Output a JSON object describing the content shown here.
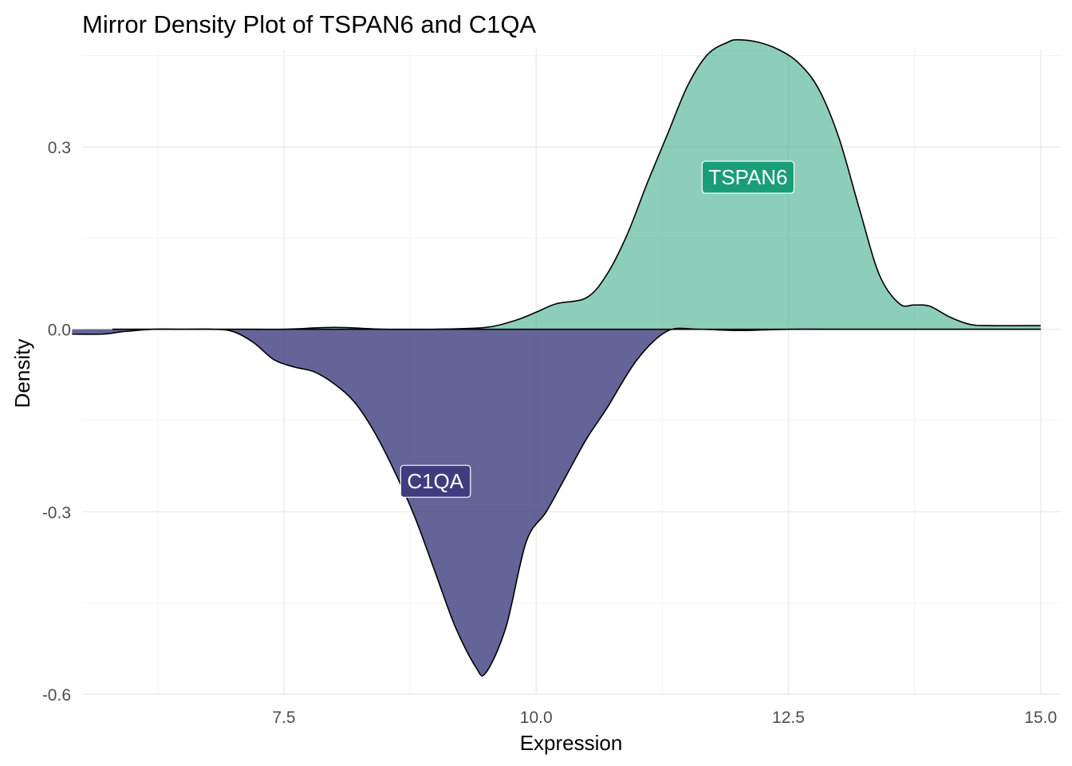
{
  "chart_data": {
    "type": "area",
    "title": "Mirror Density Plot of TSPAN6 and C1QA",
    "xlabel": "Expression",
    "ylabel": "Density",
    "xlim": [
      5.5,
      15.2
    ],
    "ylim": [
      -0.6,
      0.46
    ],
    "x_ticks": [
      7.5,
      10.0,
      12.5,
      15.0
    ],
    "x_tick_labels": [
      "7.5",
      "10.0",
      "12.5",
      "15.0"
    ],
    "y_ticks": [
      -0.6,
      -0.3,
      0.0,
      0.3
    ],
    "y_tick_labels": [
      "-0.6",
      "-0.3",
      "0.0",
      "0.3"
    ],
    "grid": true,
    "legend": "none",
    "series": [
      {
        "name": "TSPAN6",
        "color": "#1b9e77",
        "fill_opacity": 0.5,
        "label_position": [
          12.1,
          0.25
        ],
        "x": [
          5.8,
          6.5,
          7.0,
          7.5,
          8.0,
          8.5,
          9.0,
          9.5,
          9.8,
          10.0,
          10.2,
          10.5,
          10.7,
          10.9,
          11.1,
          11.3,
          11.5,
          11.7,
          11.9,
          12.0,
          12.2,
          12.4,
          12.6,
          12.8,
          13.0,
          13.2,
          13.4,
          13.6,
          13.75,
          13.9,
          14.1,
          14.3,
          14.5,
          15.0
        ],
        "values": [
          0.0,
          0.0,
          0.0,
          0.0,
          0.003,
          0.0,
          0.0,
          0.003,
          0.015,
          0.028,
          0.042,
          0.052,
          0.09,
          0.155,
          0.24,
          0.32,
          0.4,
          0.452,
          0.472,
          0.476,
          0.472,
          0.46,
          0.438,
          0.395,
          0.315,
          0.2,
          0.09,
          0.042,
          0.04,
          0.038,
          0.02,
          0.008,
          0.006,
          0.006
        ]
      },
      {
        "name": "C1QA",
        "color": "#3f3d7f",
        "fill_opacity": 0.8,
        "label_position": [
          9.0,
          -0.25
        ],
        "x": [
          5.4,
          5.7,
          5.9,
          6.2,
          6.5,
          6.8,
          7.0,
          7.2,
          7.4,
          7.6,
          7.8,
          8.0,
          8.2,
          8.4,
          8.6,
          8.8,
          9.0,
          9.2,
          9.4,
          9.5,
          9.7,
          9.9,
          10.1,
          10.3,
          10.5,
          10.7,
          11.0,
          11.3,
          11.6,
          12.0,
          12.5,
          13.0,
          15.0
        ],
        "values": [
          -0.008,
          -0.008,
          -0.004,
          0.0,
          0.0,
          0.0,
          -0.004,
          -0.022,
          -0.05,
          -0.062,
          -0.07,
          -0.09,
          -0.12,
          -0.17,
          -0.235,
          -0.31,
          -0.4,
          -0.49,
          -0.555,
          -0.565,
          -0.49,
          -0.35,
          -0.3,
          -0.24,
          -0.18,
          -0.13,
          -0.05,
          -0.003,
          0.0,
          -0.002,
          0.0,
          0.0,
          0.0
        ]
      }
    ]
  }
}
